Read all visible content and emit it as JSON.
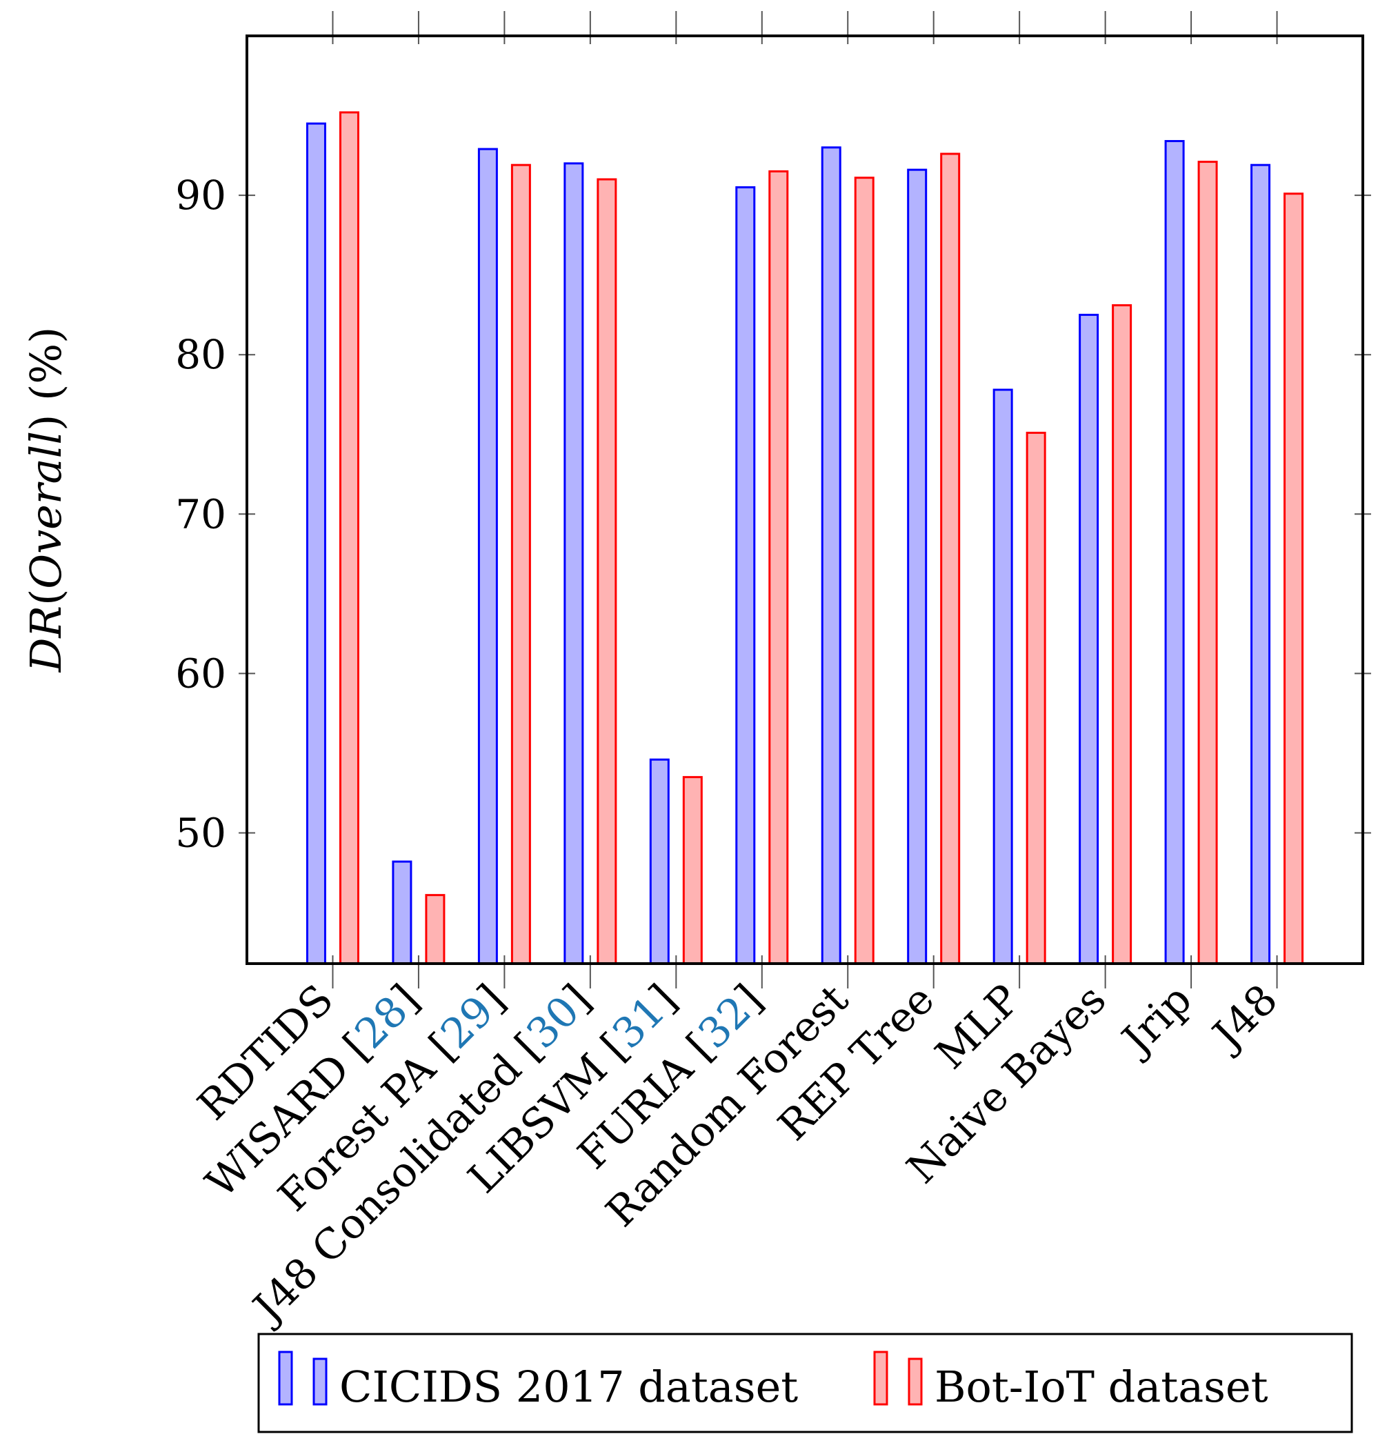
{
  "chart_data": {
    "type": "bar",
    "title": "",
    "xlabel": "",
    "ylabel": "DR(Overall) (%)",
    "ylabel_parts": {
      "dr": "DR",
      "open": "(",
      "overall": "Overall",
      "close": ")",
      "unit": " (%)"
    },
    "ylim": [
      41.8,
      100
    ],
    "yticks": [
      50,
      60,
      70,
      80,
      90
    ],
    "grid": false,
    "legend_position": "bottom",
    "categories": [
      {
        "name": "RDTIDS",
        "ref": ""
      },
      {
        "name": "WISARD",
        "ref": "28"
      },
      {
        "name": "Forest PA",
        "ref": "29"
      },
      {
        "name": "J48 Consolidated",
        "ref": "30"
      },
      {
        "name": "LIBSVM",
        "ref": "31"
      },
      {
        "name": "FURIA",
        "ref": "32"
      },
      {
        "name": "Random Forest",
        "ref": ""
      },
      {
        "name": "REP Tree",
        "ref": ""
      },
      {
        "name": "MLP",
        "ref": ""
      },
      {
        "name": "Naive Bayes",
        "ref": ""
      },
      {
        "name": "Jrip",
        "ref": ""
      },
      {
        "name": "J48",
        "ref": ""
      }
    ],
    "series": [
      {
        "name": "CICIDS 2017 dataset",
        "stroke": "#0000ff",
        "fill": "#b3b3ff",
        "values": [
          94.5,
          48.2,
          92.9,
          92.0,
          54.6,
          90.5,
          93.0,
          91.6,
          77.8,
          82.5,
          93.4,
          91.9
        ]
      },
      {
        "name": "Bot-IoT dataset",
        "stroke": "#ff0000",
        "fill": "#ffb3b3",
        "values": [
          95.2,
          46.1,
          91.9,
          91.0,
          53.5,
          91.5,
          91.1,
          92.6,
          75.1,
          83.1,
          92.1,
          90.1
        ]
      }
    ]
  }
}
